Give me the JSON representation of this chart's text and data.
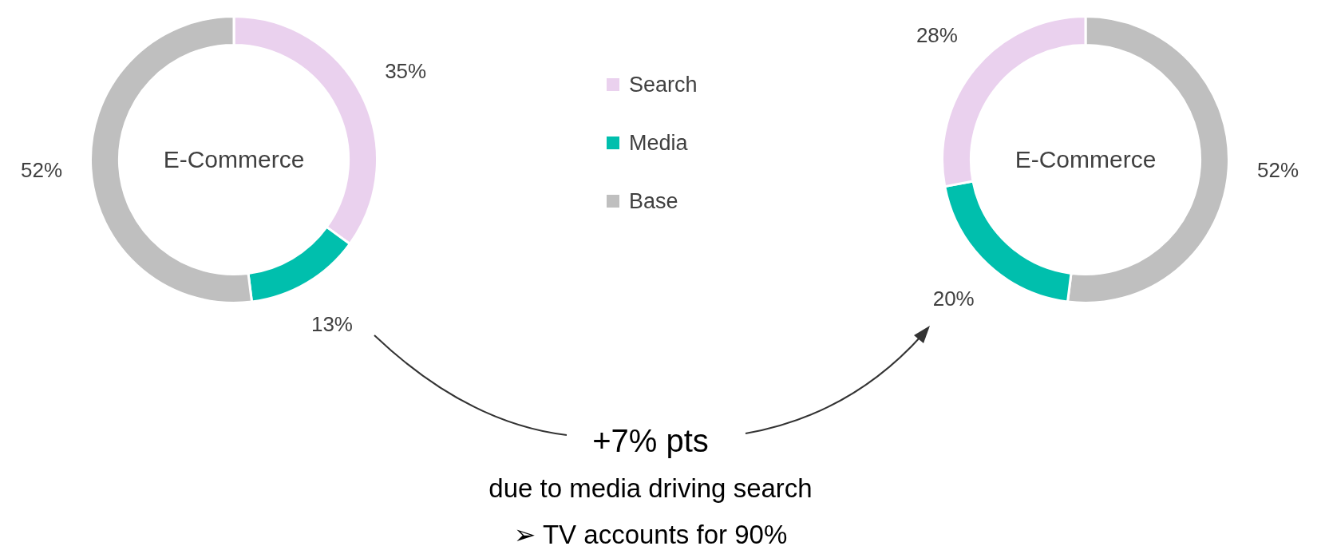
{
  "chart_data": [
    {
      "type": "donut",
      "title": "E-Commerce",
      "categories": [
        "Search",
        "Media",
        "Base"
      ],
      "values": [
        35,
        13,
        52
      ],
      "colors": [
        "#ead1ee",
        "#00bfad",
        "#bfbfbf"
      ],
      "value_labels": [
        "35%",
        "13%",
        "52%"
      ],
      "legend": "right",
      "annotations": [
        "+7% pts",
        "due to media driving search",
        "➢ TV accounts for 90%"
      ]
    },
    {
      "type": "donut",
      "title": "E-Commerce",
      "categories": [
        null,
        null,
        null
      ],
      "values": [
        52,
        20,
        28
      ],
      "colors": [
        "#bfbfbf",
        "#00bfad",
        "#ead1ee"
      ],
      "value_labels": [
        "52%",
        "20%",
        "28%"
      ]
    }
  ]
}
